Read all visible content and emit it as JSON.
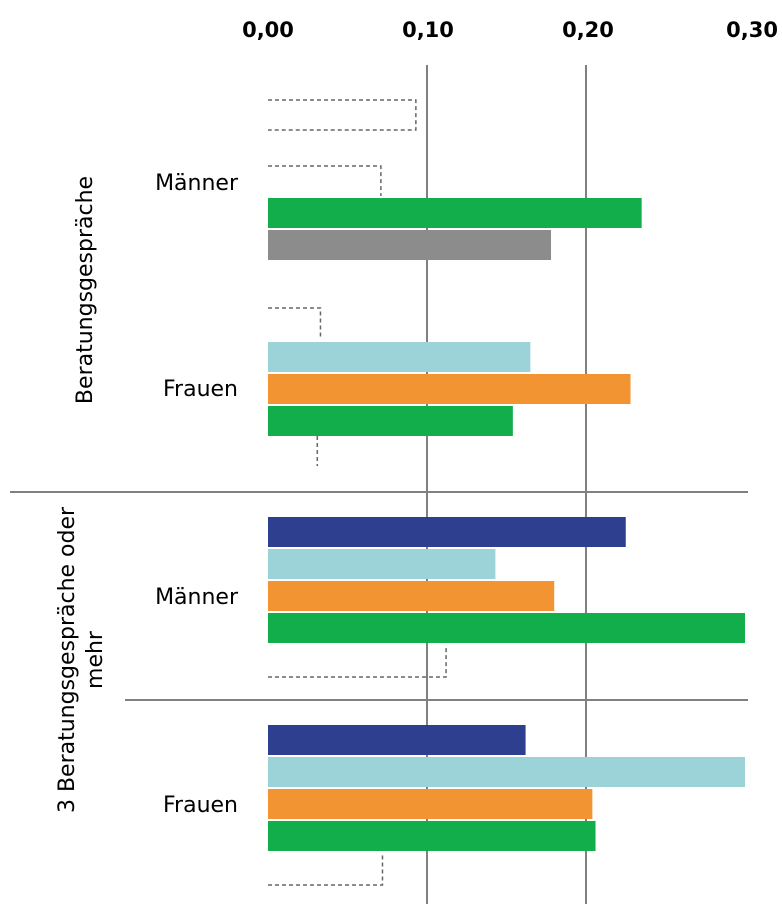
{
  "chart_data": {
    "type": "bar",
    "orientation": "horizontal",
    "xlim": [
      0,
      0.3
    ],
    "x_ticks": [
      "0,00",
      "0,10",
      "0,20",
      "0,30"
    ],
    "grid": true,
    "colors": {
      "dark_blue": "#2E3F8F",
      "light_blue": "#9BD3D8",
      "orange": "#F29432",
      "green": "#12AE4B",
      "gray": "#8C8C8C",
      "dashed": "#666666"
    },
    "groups": [
      {
        "label": "Beratungsgespräche",
        "categories": [
          {
            "label": "Männer",
            "bars": [
              {
                "style": "dashed",
                "value": 0.093
              },
              {
                "style": "dashed",
                "value": 0.071
              },
              {
                "color": "green",
                "value": 0.235
              },
              {
                "color": "gray",
                "value": 0.178
              }
            ]
          },
          {
            "label": "Frauen",
            "bars": [
              {
                "style": "dashed",
                "value": 0.033
              },
              {
                "color": "light_blue",
                "value": 0.165
              },
              {
                "color": "orange",
                "value": 0.228
              },
              {
                "color": "green",
                "value": 0.154
              },
              {
                "style": "dashed",
                "value": 0.031
              }
            ]
          }
        ]
      },
      {
        "label": "3 Beratungsgespräche oder mehr",
        "categories": [
          {
            "label": "Männer",
            "bars": [
              {
                "color": "dark_blue",
                "value": 0.225
              },
              {
                "color": "light_blue",
                "value": 0.143
              },
              {
                "color": "orange",
                "value": 0.18
              },
              {
                "color": "green",
                "value": 0.3
              },
              {
                "style": "dashed",
                "value": 0.112
              }
            ]
          },
          {
            "label": "Frauen",
            "bars": [
              {
                "color": "dark_blue",
                "value": 0.162
              },
              {
                "color": "light_blue",
                "value": 0.3
              },
              {
                "color": "orange",
                "value": 0.204
              },
              {
                "color": "green",
                "value": 0.206
              },
              {
                "style": "dashed",
                "value": 0.072
              }
            ]
          }
        ]
      }
    ]
  }
}
